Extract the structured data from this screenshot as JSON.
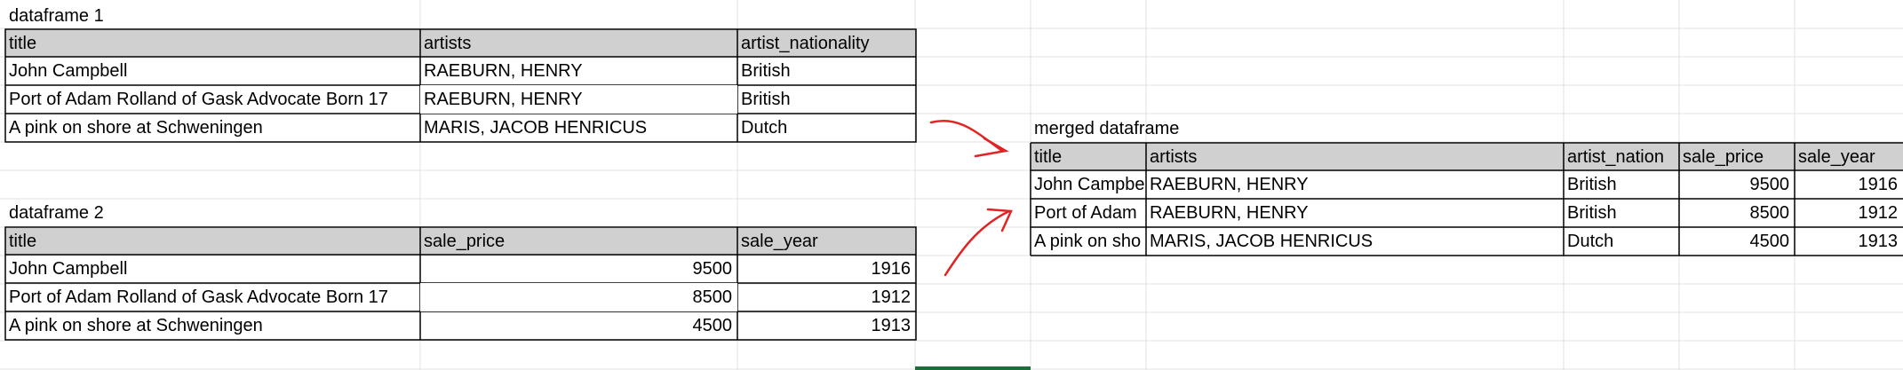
{
  "df1": {
    "label": "dataframe 1",
    "columns": [
      "title",
      "artists",
      "artist_nationality"
    ],
    "rows": [
      [
        "John Campbell",
        "RAEBURN, HENRY",
        "British"
      ],
      [
        "Port of Adam Rolland of Gask Advocate Born 17",
        "RAEBURN, HENRY",
        "British"
      ],
      [
        "A pink on shore at Schweningen",
        "MARIS, JACOB HENRICUS",
        "Dutch"
      ]
    ]
  },
  "df2": {
    "label": "dataframe 2",
    "columns": [
      "title",
      "sale_price",
      "sale_year"
    ],
    "rows": [
      [
        "John Campbell",
        "9500",
        "1916"
      ],
      [
        "Port of Adam Rolland of Gask Advocate Born 17",
        "8500",
        "1912"
      ],
      [
        "A pink on shore at Schweningen",
        "4500",
        "1913"
      ]
    ]
  },
  "merged": {
    "label": "merged dataframe",
    "columns": [
      "title",
      "artists",
      "artist_nation",
      "sale_price",
      "sale_year"
    ],
    "rows": [
      [
        "John Campbe",
        "RAEBURN, HENRY",
        "British",
        "9500",
        "1916"
      ],
      [
        "Port of Adam",
        "RAEBURN, HENRY",
        "British",
        "8500",
        "1912"
      ],
      [
        "A pink on sho",
        "MARIS, JACOB HENRICUS",
        "Dutch",
        "4500",
        "1913"
      ]
    ]
  },
  "colors": {
    "header_fill": "#d0d0d0",
    "grid_line": "#e2e2e2",
    "border": "#000000",
    "arrow": "#e02424",
    "selected_col": "#1e6e3c"
  },
  "icons": [
    "arrow-to-merged-icon",
    "arrow-to-merged-icon"
  ]
}
